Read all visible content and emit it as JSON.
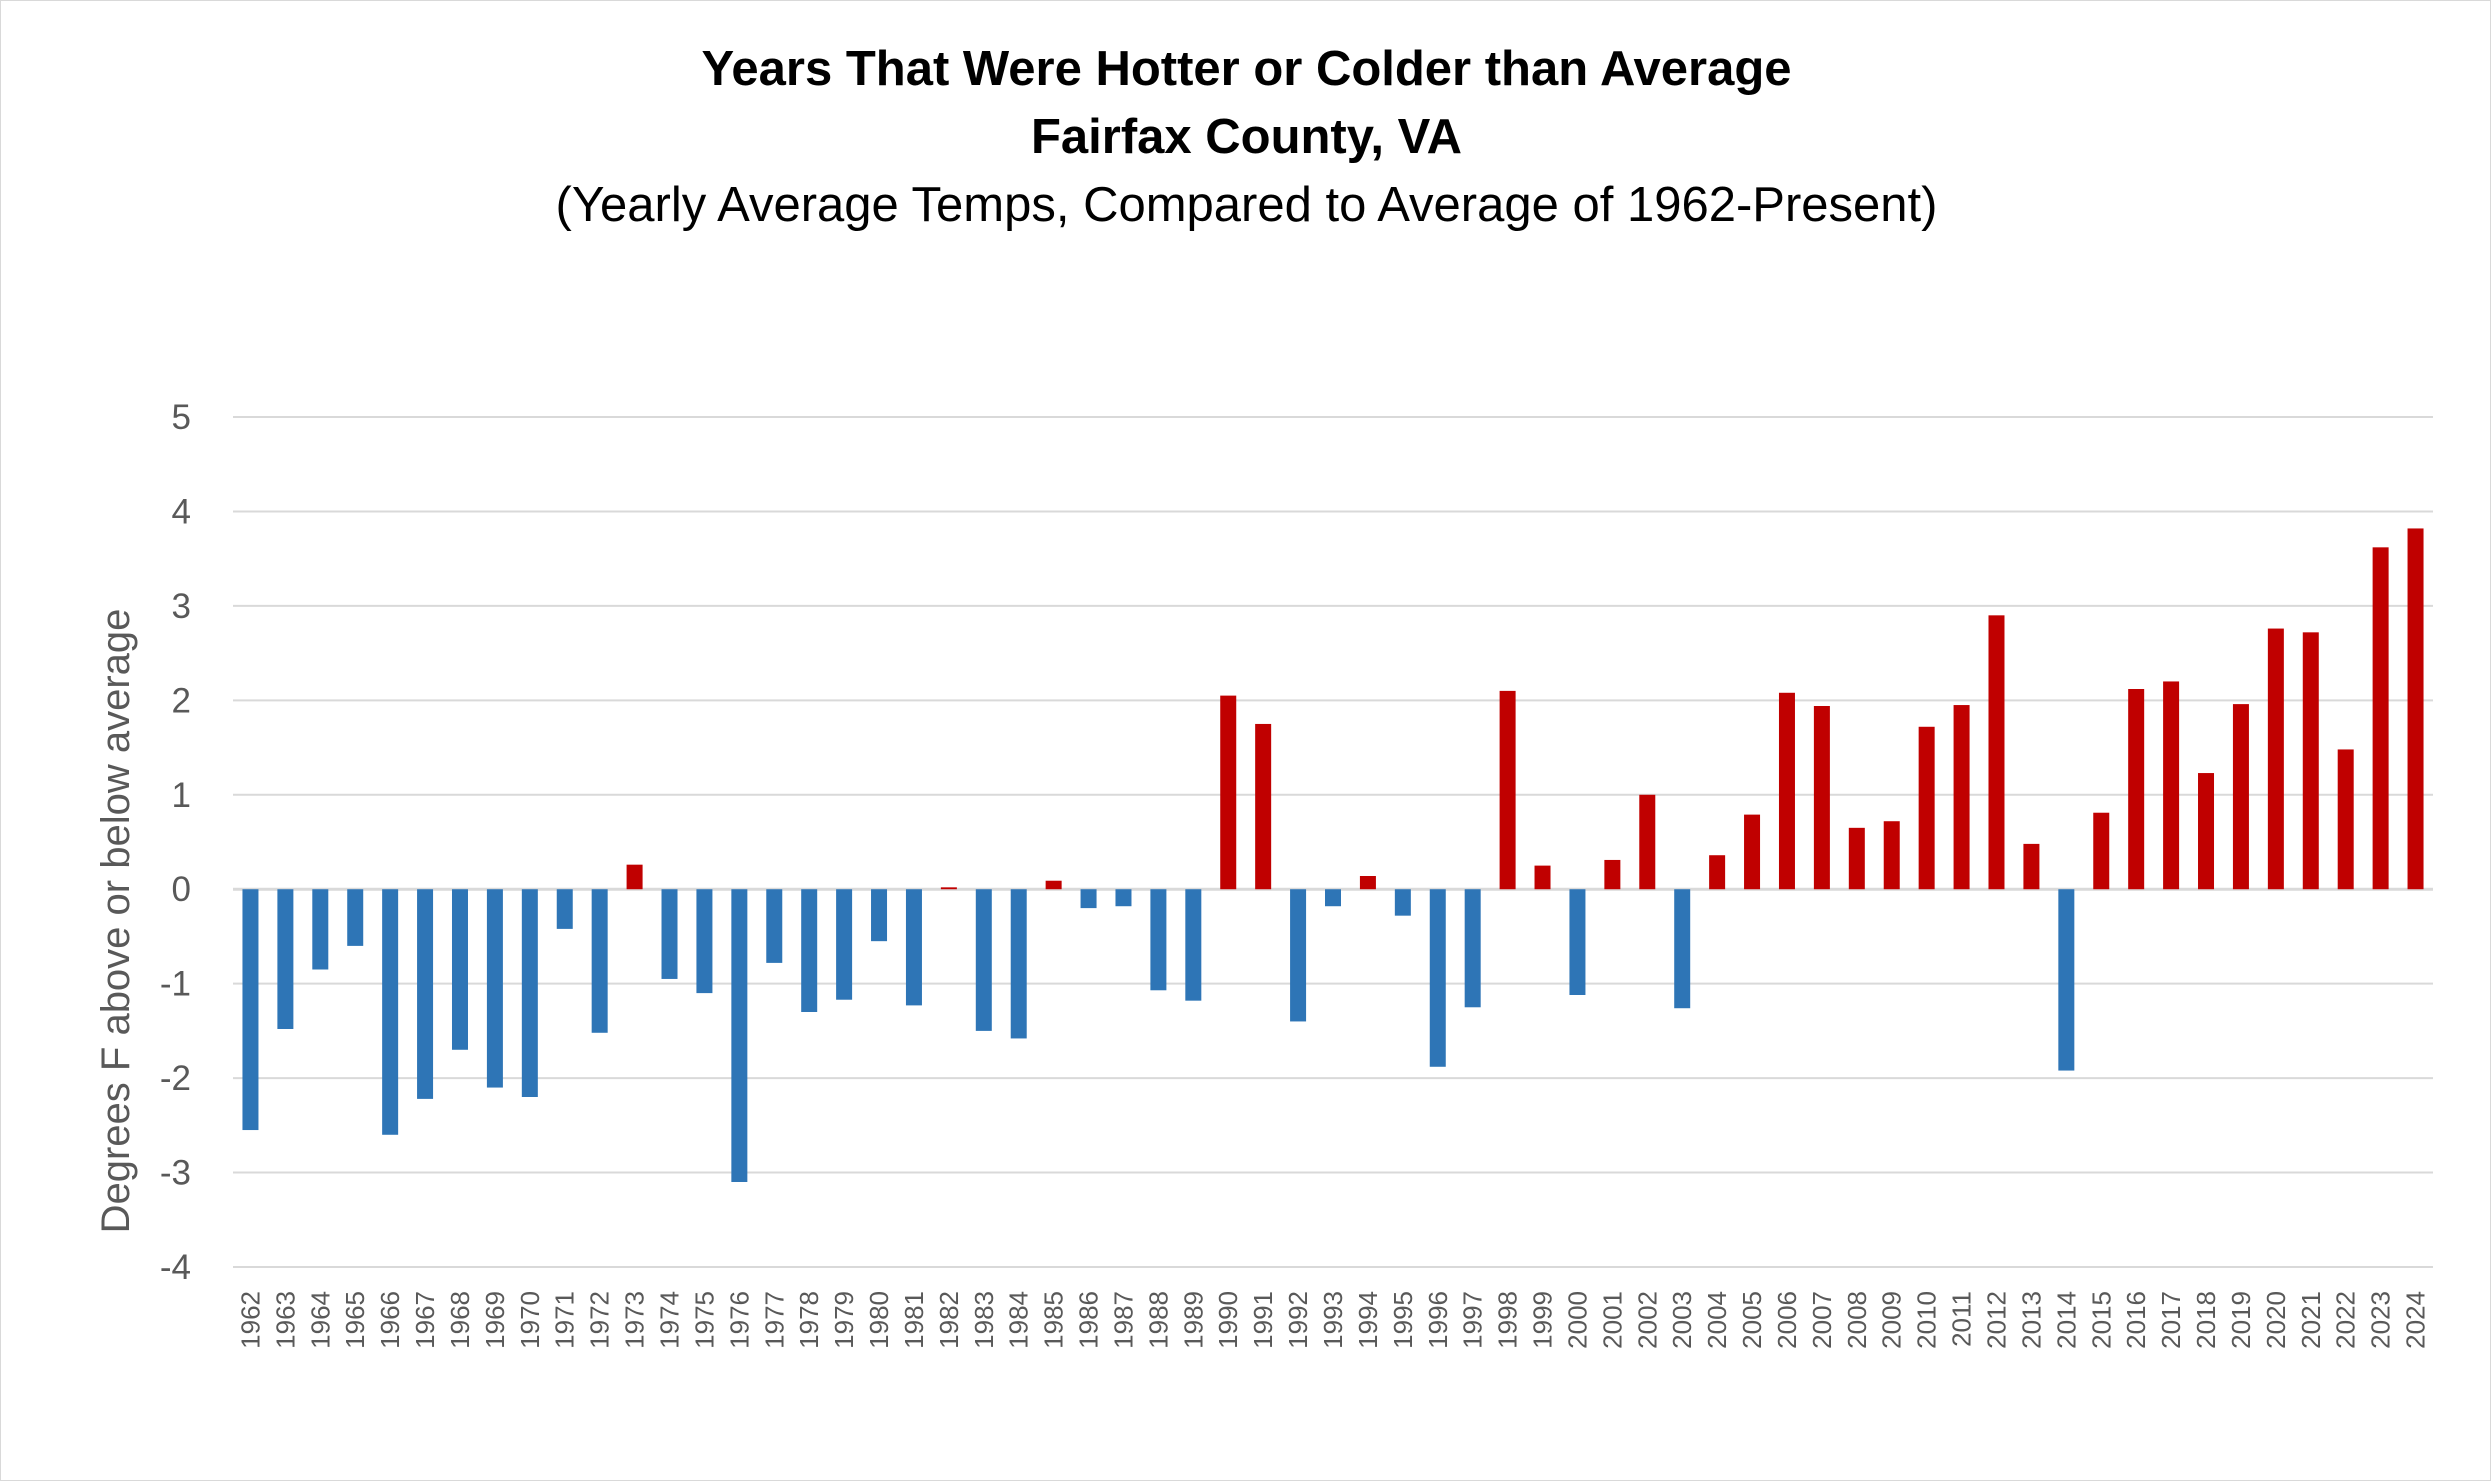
{
  "chart_data": {
    "type": "bar",
    "title": "Years That Were Hotter or Colder than Average",
    "subtitle": "Fairfax County, VA",
    "note": "(Yearly Average Temps, Compared to Average of 1962-Present)",
    "xlabel": "",
    "ylabel": "Degrees F above or below average",
    "ylim": [
      -4,
      5
    ],
    "yticks": [
      "5",
      "4",
      "3",
      "2",
      "1",
      "0",
      "-1",
      "-2",
      "-3",
      "-4"
    ],
    "grid": true,
    "legend": "none",
    "colors": {
      "above": "#c00000",
      "below": "#2e75b6",
      "grid": "#d9d9d9",
      "text": "#595959"
    },
    "categories": [
      "1962",
      "1963",
      "1964",
      "1965",
      "1966",
      "1967",
      "1968",
      "1969",
      "1970",
      "1971",
      "1972",
      "1973",
      "1974",
      "1975",
      "1976",
      "1977",
      "1978",
      "1979",
      "1980",
      "1981",
      "1982",
      "1983",
      "1984",
      "1985",
      "1986",
      "1987",
      "1988",
      "1989",
      "1990",
      "1991",
      "1992",
      "1993",
      "1994",
      "1995",
      "1996",
      "1997",
      "1998",
      "1999",
      "2000",
      "2001",
      "2002",
      "2003",
      "2004",
      "2005",
      "2006",
      "2007",
      "2008",
      "2009",
      "2010",
      "2011",
      "2012",
      "2013",
      "2014",
      "2015",
      "2016",
      "2017",
      "2018",
      "2019",
      "2020",
      "2021",
      "2022",
      "2023",
      "2024"
    ],
    "values": [
      -2.55,
      -1.48,
      -0.85,
      -0.6,
      -2.6,
      -2.22,
      -1.7,
      -2.1,
      -2.2,
      -0.42,
      -1.52,
      0.26,
      -0.95,
      -1.1,
      -3.1,
      -0.78,
      -1.3,
      -1.17,
      -0.55,
      -1.23,
      0.02,
      -1.5,
      -1.58,
      0.09,
      -0.2,
      -0.18,
      -1.07,
      -1.18,
      2.05,
      1.75,
      -1.4,
      -0.18,
      0.14,
      -0.28,
      -1.88,
      -1.25,
      2.1,
      0.25,
      -1.12,
      0.31,
      1.0,
      -1.26,
      0.36,
      0.79,
      2.08,
      1.94,
      0.65,
      0.72,
      1.72,
      1.95,
      2.9,
      0.48,
      -1.92,
      0.81,
      2.12,
      2.2,
      1.23,
      1.96,
      2.76,
      2.72,
      1.48,
      3.62,
      3.82
    ]
  }
}
